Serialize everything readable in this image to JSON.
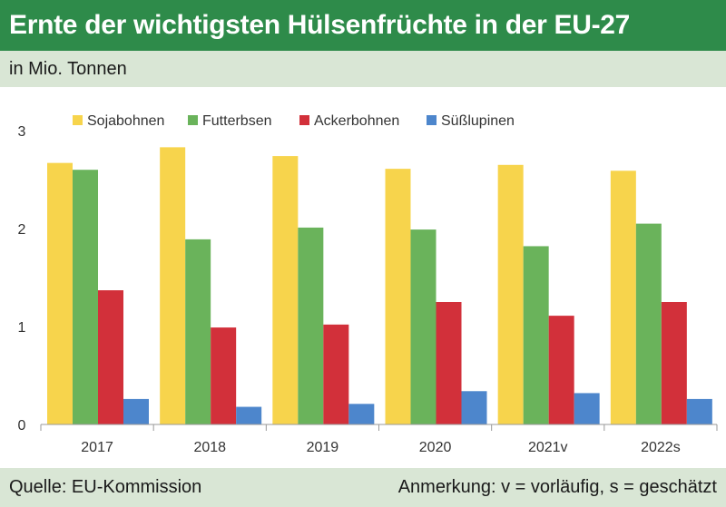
{
  "header": {
    "title": "Ernte der wichtigsten Hülsenfrüchte in der EU-27",
    "unit": "in Mio. Tonnen"
  },
  "footer": {
    "source": "Quelle: EU-Kommission",
    "note": "Anmerkung: v = vorläufig, s = geschätzt"
  },
  "chart_data": {
    "type": "bar",
    "categories": [
      "2017",
      "2018",
      "2019",
      "2020",
      "2021v",
      "2022s"
    ],
    "series": [
      {
        "name": "Sojabohnen",
        "color": "#f7d44c",
        "values": [
          2.67,
          2.83,
          2.74,
          2.61,
          2.65,
          2.59
        ]
      },
      {
        "name": "Futterbsen",
        "color": "#6ab35b",
        "values": [
          2.6,
          1.89,
          2.01,
          1.99,
          1.82,
          2.05
        ]
      },
      {
        "name": "Ackerbohnen",
        "color": "#d2303a",
        "values": [
          1.37,
          0.99,
          1.02,
          1.25,
          1.11,
          1.25
        ]
      },
      {
        "name": "Süßlupinen",
        "color": "#4d86cc",
        "values": [
          0.26,
          0.18,
          0.21,
          0.34,
          0.32,
          0.26
        ]
      }
    ],
    "yticks": [
      0,
      1,
      2,
      3
    ],
    "ylim": [
      0,
      3.2
    ],
    "grid": false,
    "legend_position": "top"
  }
}
